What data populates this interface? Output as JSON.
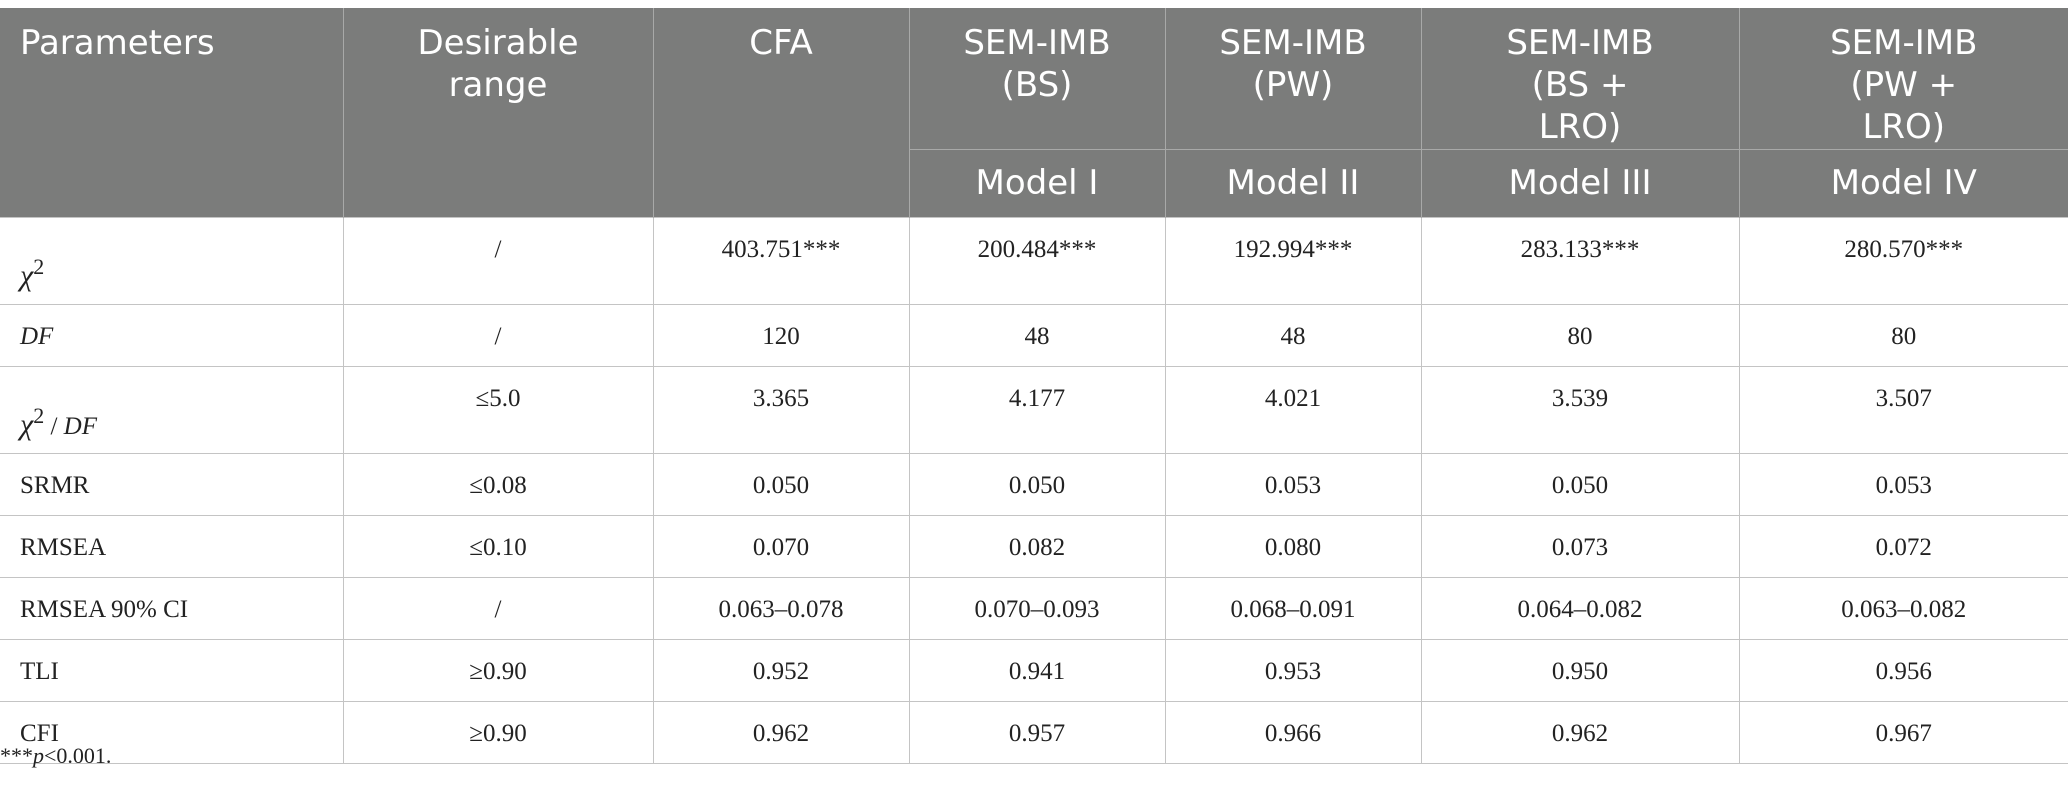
{
  "table": {
    "header": {
      "parameters": "Parameters",
      "desirable_range": "Desirable range",
      "cfa": "CFA",
      "models": [
        {
          "method": "SEM-IMB (BS)",
          "model": "Model I"
        },
        {
          "method": "SEM-IMB (PW)",
          "model": "Model II"
        },
        {
          "method": "SEM-IMB (BS + LRO)",
          "model": "Model III"
        },
        {
          "method": "SEM-IMB (PW + LRO)",
          "model": "Model IV"
        }
      ]
    },
    "rows": [
      {
        "param_symbol": "χ",
        "param_sup": "2",
        "range": "/",
        "values": [
          "403.751***",
          "200.484***",
          "192.994***",
          "283.133***",
          "280.570***"
        ]
      },
      {
        "param": "DF",
        "range": "/",
        "values": [
          "120",
          "48",
          "48",
          "80",
          "80"
        ]
      },
      {
        "param_symbol": "χ",
        "param_sup": "2",
        "param_suffix": " / ",
        "param_suffix2": "DF",
        "range": "≤5.0",
        "values": [
          "3.365",
          "4.177",
          "4.021",
          "3.539",
          "3.507"
        ]
      },
      {
        "param": "SRMR",
        "range": "≤0.08",
        "values": [
          "0.050",
          "0.050",
          "0.053",
          "0.050",
          "0.053"
        ]
      },
      {
        "param": "RMSEA",
        "range": "≤0.10",
        "values": [
          "0.070",
          "0.082",
          "0.080",
          "0.073",
          "0.072"
        ]
      },
      {
        "param": "RMSEA 90% CI",
        "range": "/",
        "values": [
          "0.063–0.078",
          "0.070–0.093",
          "0.068–0.091",
          "0.064–0.082",
          "0.063–0.082"
        ]
      },
      {
        "param": "TLI",
        "range": "≥0.90",
        "values": [
          "0.952",
          "0.941",
          "0.953",
          "0.950",
          "0.956"
        ]
      },
      {
        "param": "CFI",
        "range": "≥0.90",
        "values": [
          "0.962",
          "0.957",
          "0.966",
          "0.962",
          "0.967"
        ]
      }
    ]
  },
  "footnote": {
    "stars": "***",
    "p": "p",
    "rest": "<0.001."
  }
}
